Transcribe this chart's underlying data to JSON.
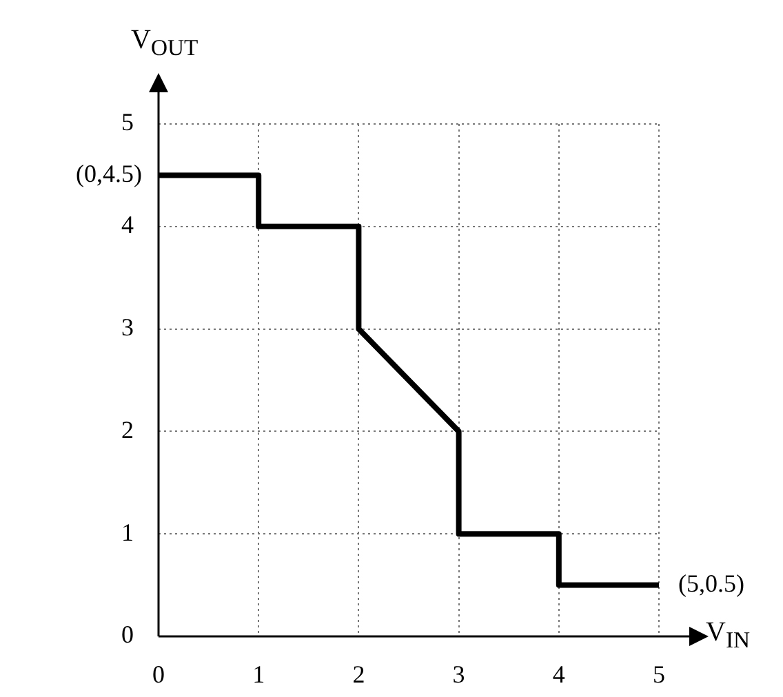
{
  "chart_data": {
    "type": "line",
    "xlabel": "V$_{IN}$",
    "ylabel": "V$_{OUT}$",
    "x": [
      0,
      1,
      1,
      2,
      2,
      3,
      3,
      4,
      4,
      5
    ],
    "series": [
      {
        "color": "#000000",
        "values": [
          4.5,
          4.5,
          4,
          4,
          3,
          2,
          1,
          1,
          0.5,
          0.5
        ]
      }
    ],
    "xlim": [
      0,
      5
    ],
    "ylim": [
      0,
      5
    ],
    "xticks": [
      0,
      1,
      2,
      3,
      4,
      5
    ],
    "yticks": [
      0,
      1,
      2,
      3,
      4,
      5
    ],
    "grid": true,
    "marker": "none",
    "line_style": "solid",
    "legend": false,
    "annotations": [
      {
        "text": "(0,4.5)",
        "x": 0,
        "y": 4.5
      },
      {
        "text": "(5,0.5)",
        "x": 5,
        "y": 0.5
      }
    ]
  }
}
